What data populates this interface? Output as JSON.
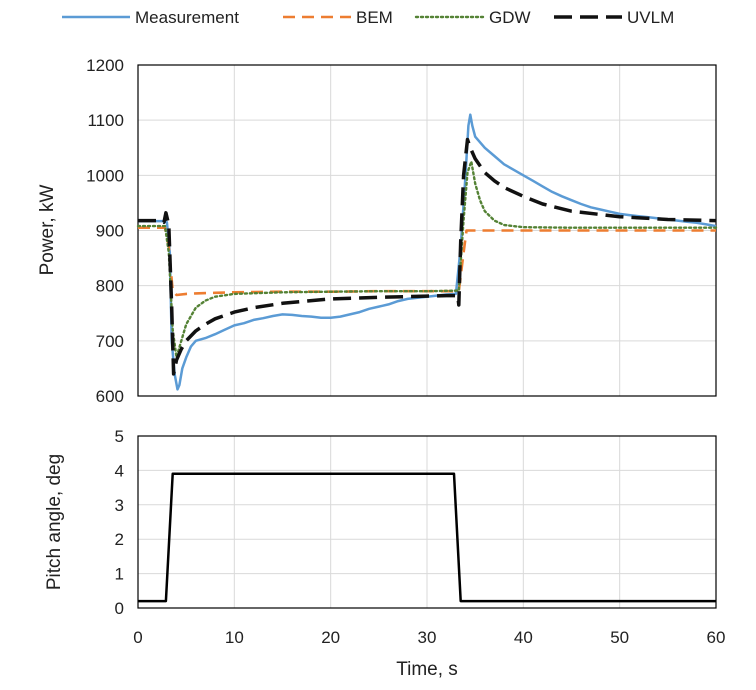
{
  "chart_data": [
    {
      "type": "line",
      "xlim": [
        0,
        60
      ],
      "ylim": [
        600,
        1200
      ],
      "yticks": [
        600,
        700,
        800,
        900,
        1000,
        1100,
        1200
      ],
      "ylabel": "Power, kW",
      "grid": true,
      "legend": "top",
      "series": [
        {
          "name": "Measurement",
          "style": "solid",
          "color": "#5b9bd5",
          "x": [
            0,
            2.5,
            3.0,
            3.3,
            3.5,
            3.8,
            4.1,
            4.3,
            4.6,
            5.0,
            5.5,
            6,
            7,
            8,
            9,
            10,
            11,
            12,
            13,
            14,
            15,
            16,
            17,
            18,
            19,
            20,
            21,
            22,
            23,
            24,
            25,
            26,
            27,
            28,
            29,
            30,
            31,
            32,
            33,
            33.5,
            34.0,
            34.3,
            34.5,
            34.7,
            35,
            36,
            37,
            38,
            39,
            40,
            41,
            42,
            43,
            44,
            45,
            46,
            47,
            48,
            49,
            50,
            51,
            52,
            53,
            54,
            55,
            56,
            57,
            58,
            59,
            60
          ],
          "y": [
            917,
            917,
            915,
            860,
            700,
            640,
            612,
            620,
            650,
            670,
            690,
            700,
            705,
            712,
            720,
            728,
            732,
            738,
            741,
            745,
            748,
            747,
            745,
            744,
            742,
            742,
            744,
            748,
            752,
            758,
            762,
            766,
            772,
            776,
            778,
            780,
            782,
            784,
            785,
            870,
            1000,
            1090,
            1110,
            1090,
            1070,
            1050,
            1035,
            1020,
            1010,
            1000,
            990,
            980,
            970,
            962,
            955,
            948,
            942,
            938,
            934,
            930,
            928,
            926,
            924,
            922,
            920,
            918,
            916,
            914,
            911,
            908
          ]
        },
        {
          "name": "BEM",
          "style": "dashed",
          "color": "#ed7d31",
          "x": [
            0,
            2.8,
            3.2,
            3.6,
            4.0,
            5,
            6,
            8,
            10,
            15,
            20,
            25,
            30,
            33.3,
            33.8,
            34.1,
            34.5,
            35,
            40,
            45,
            50,
            55,
            60
          ],
          "y": [
            905,
            905,
            870,
            790,
            783,
            785,
            786,
            787,
            788,
            789,
            789,
            790,
            790,
            790,
            860,
            900,
            900,
            900,
            900,
            900,
            900,
            900,
            900
          ]
        },
        {
          "name": "GDW",
          "style": "dotted",
          "color": "#548235",
          "x": [
            0,
            2.8,
            3.2,
            3.6,
            4.0,
            4.5,
            5,
            6,
            7,
            8,
            10,
            15,
            20,
            25,
            30,
            33.3,
            33.8,
            34.2,
            34.6,
            35,
            35.5,
            36,
            37,
            38,
            40,
            45,
            50,
            55,
            60
          ],
          "y": [
            908,
            908,
            860,
            720,
            670,
            700,
            730,
            760,
            773,
            780,
            785,
            788,
            789,
            790,
            790,
            791,
            920,
            1005,
            1025,
            985,
            955,
            935,
            918,
            910,
            906,
            905,
            905,
            905,
            905
          ]
        },
        {
          "name": "UVLM",
          "style": "longdash",
          "color": "#111111",
          "x": [
            0,
            2.4,
            2.7,
            2.9,
            3.2,
            3.5,
            3.7,
            4.0,
            4.5,
            5,
            6,
            7,
            8,
            10,
            12,
            15,
            18,
            20,
            25,
            30,
            32,
            33.2,
            33.3,
            33.5,
            33.8,
            34.2,
            34.5,
            35,
            36,
            37,
            38,
            40,
            42,
            45,
            50,
            55,
            60
          ],
          "y": [
            918,
            918,
            915,
            932,
            910,
            760,
            640,
            665,
            685,
            700,
            718,
            730,
            740,
            752,
            760,
            768,
            773,
            776,
            779,
            781,
            782,
            782,
            765,
            880,
            1000,
            1065,
            1050,
            1030,
            1005,
            990,
            978,
            962,
            948,
            935,
            925,
            920,
            918
          ]
        }
      ]
    },
    {
      "type": "line",
      "xlim": [
        0,
        60
      ],
      "ylim": [
        0,
        5
      ],
      "yticks": [
        0,
        1,
        2,
        3,
        4,
        5
      ],
      "xticks": [
        0,
        10,
        20,
        30,
        40,
        50,
        60
      ],
      "ylabel": "Pitch angle, deg",
      "xlabel": "Time, s",
      "grid": true,
      "series": [
        {
          "style": "solid",
          "color": "#000000",
          "x": [
            0,
            2.9,
            3.6,
            32.8,
            33.5,
            60
          ],
          "y": [
            0.2,
            0.2,
            3.9,
            3.9,
            0.2,
            0.2
          ]
        }
      ]
    }
  ]
}
